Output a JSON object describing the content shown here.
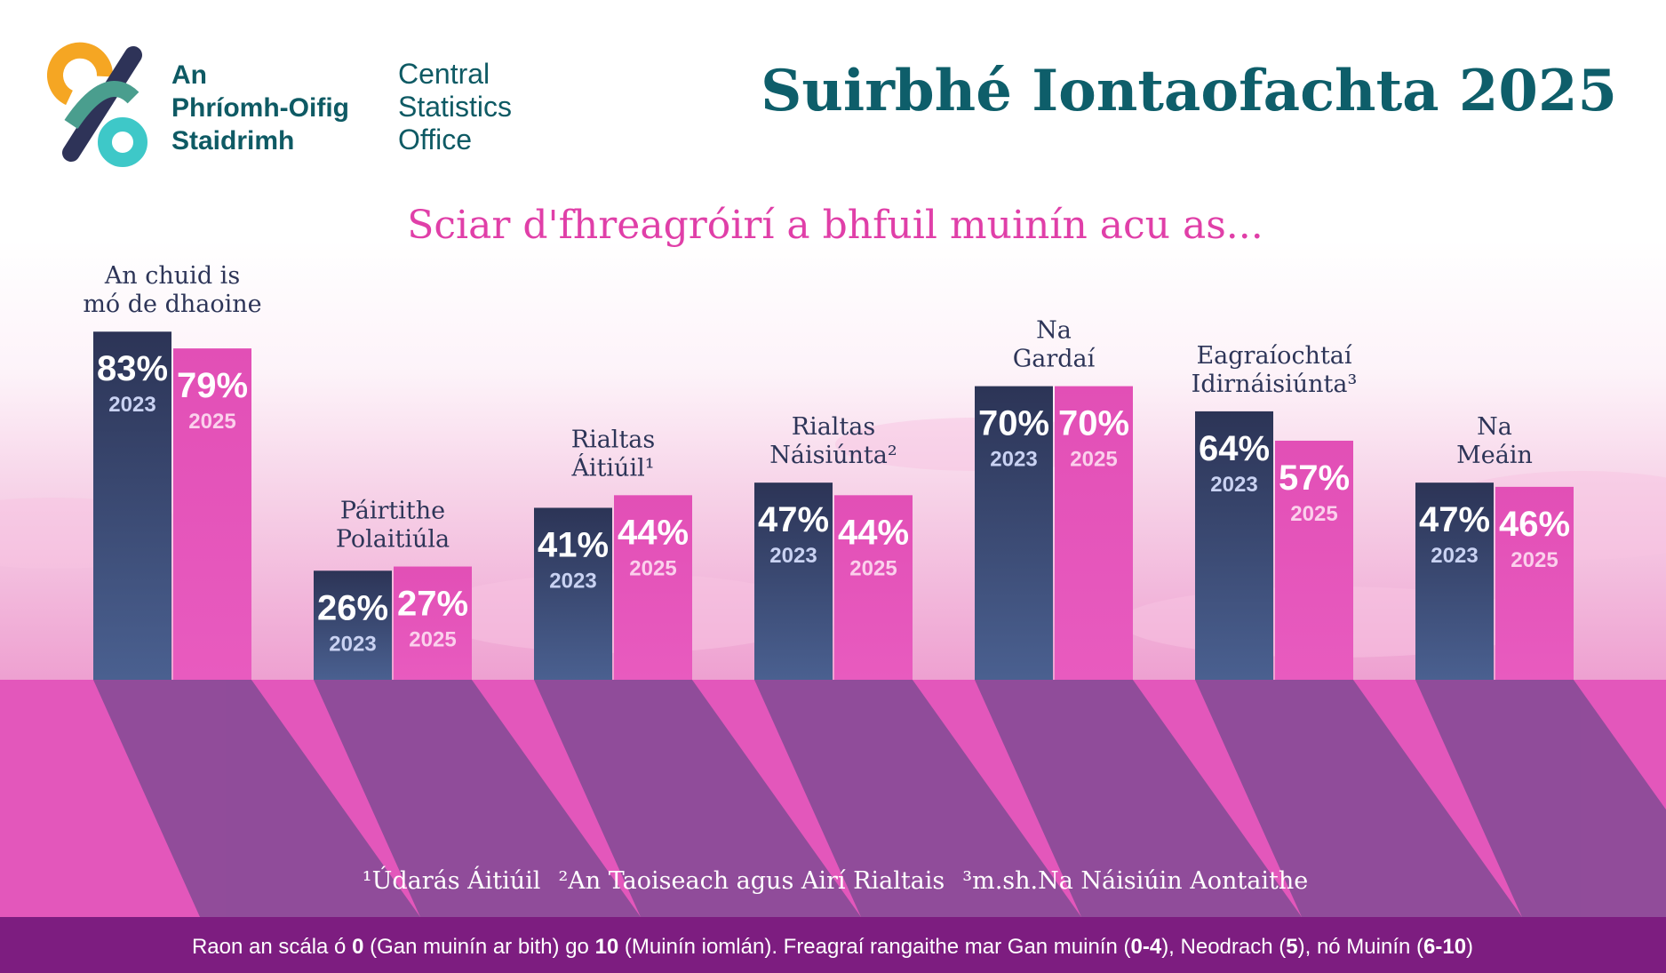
{
  "header": {
    "logo_irish": [
      "An",
      "Phríomh-Oifig",
      "Staidrimh"
    ],
    "logo_english": [
      "Central",
      "Statistics",
      "Office"
    ],
    "title": "Suirbhé Iontaofachta 2025"
  },
  "chart_data": {
    "type": "bar",
    "subtitle": "Sciar d'fhreagróirí a bhfuil muinín acu as...",
    "categories": [
      [
        "An chuid is",
        "mó de dhaoine"
      ],
      [
        "Páirtithe",
        "Polaitiúla"
      ],
      [
        "Rialtas",
        "Áitiúil¹"
      ],
      [
        "Rialtas",
        "Náisiúnta²"
      ],
      [
        "Na",
        "Gardaí"
      ],
      [
        "Eagraíochtaí",
        "Idirnáisiúnta³"
      ],
      [
        "Na",
        "Meáin"
      ]
    ],
    "series": [
      {
        "name": "2023",
        "color": "#33406a",
        "values": [
          83,
          26,
          41,
          47,
          70,
          64,
          47
        ],
        "value_labels": [
          "83%",
          "26%",
          "41%",
          "47%",
          "70%",
          "64%",
          "47%"
        ]
      },
      {
        "name": "2025",
        "color": "#e456ba",
        "values": [
          79,
          27,
          44,
          44,
          70,
          57,
          46
        ],
        "value_labels": [
          "79%",
          "27%",
          "44%",
          "44%",
          "70%",
          "57%",
          "46%"
        ]
      }
    ],
    "footnotes": [
      "¹Údarás Áitiúil",
      "²An Taoiseach agus Airí Rialtais",
      "³m.sh.Na Náisiúin Aontaithe"
    ]
  },
  "footer": [
    {
      "text": "Raon an scála ó "
    },
    {
      "text": "0",
      "bold": true
    },
    {
      "text": " (Gan muinín ar bith) go "
    },
    {
      "text": "10",
      "bold": true
    },
    {
      "text": " (Muinín iomlán). Freagraí rangaithe mar Gan muinín ("
    },
    {
      "text": "0-4",
      "bold": true
    },
    {
      "text": "), Neodrach ("
    },
    {
      "text": "5",
      "bold": true
    },
    {
      "text": "), nó Muinín ("
    },
    {
      "text": "6-10",
      "bold": true
    },
    {
      "text": ")"
    }
  ]
}
